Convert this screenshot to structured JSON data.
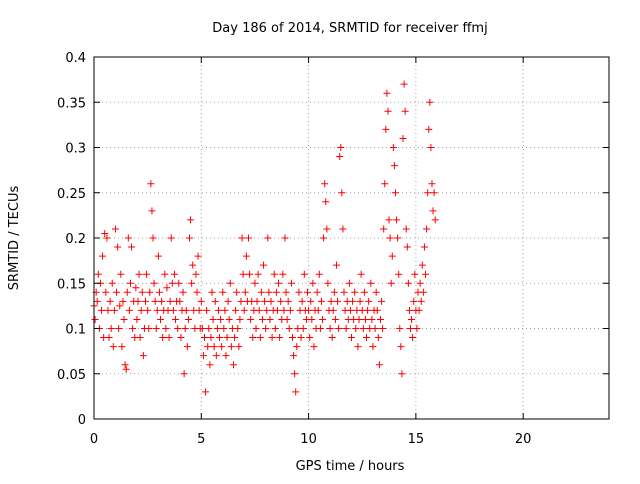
{
  "chart_data": {
    "type": "scatter",
    "title": "Day 186 of 2014, SRMTID for receiver ffmj",
    "xlabel": "GPS time / hours",
    "ylabel": "SRMTID / TECUs",
    "xlim": [
      0,
      24
    ],
    "ylim": [
      0,
      0.4
    ],
    "xticks": [
      0,
      5,
      10,
      15,
      20
    ],
    "xtick_labels": [
      "0",
      "5",
      "10",
      "15",
      "20"
    ],
    "yticks": [
      0,
      0.05,
      0.1,
      0.15,
      0.2,
      0.25,
      0.3,
      0.35,
      0.4
    ],
    "ytick_labels": [
      "0",
      "0.05",
      "0.1",
      "0.15",
      "0.2",
      "0.25",
      "0.3",
      "0.35",
      "0.4"
    ],
    "grid": true,
    "marker": "+",
    "color": "#ff0000",
    "series": [
      {
        "name": "SRMTID",
        "points": [
          [
            0.0,
            0.125
          ],
          [
            0.05,
            0.11
          ],
          [
            0.1,
            0.14
          ],
          [
            0.15,
            0.13
          ],
          [
            0.2,
            0.16
          ],
          [
            0.25,
            0.1
          ],
          [
            0.3,
            0.15
          ],
          [
            0.35,
            0.12
          ],
          [
            0.4,
            0.18
          ],
          [
            0.45,
            0.09
          ],
          [
            0.5,
            0.205
          ],
          [
            0.55,
            0.14
          ],
          [
            0.6,
            0.2
          ],
          [
            0.65,
            0.12
          ],
          [
            0.7,
            0.09
          ],
          [
            0.75,
            0.13
          ],
          [
            0.8,
            0.1
          ],
          [
            0.85,
            0.15
          ],
          [
            0.9,
            0.08
          ],
          [
            0.95,
            0.12
          ],
          [
            1.0,
            0.21
          ],
          [
            1.05,
            0.14
          ],
          [
            1.1,
            0.19
          ],
          [
            1.15,
            0.1
          ],
          [
            1.2,
            0.125
          ],
          [
            1.25,
            0.16
          ],
          [
            1.3,
            0.08
          ],
          [
            1.35,
            0.13
          ],
          [
            1.4,
            0.11
          ],
          [
            1.45,
            0.06
          ],
          [
            1.5,
            0.055
          ],
          [
            1.55,
            0.14
          ],
          [
            1.6,
            0.2
          ],
          [
            1.65,
            0.12
          ],
          [
            1.7,
            0.15
          ],
          [
            1.75,
            0.19
          ],
          [
            1.8,
            0.1
          ],
          [
            1.85,
            0.13
          ],
          [
            1.9,
            0.09
          ],
          [
            1.95,
            0.145
          ],
          [
            2.0,
            0.11
          ],
          [
            2.05,
            0.13
          ],
          [
            2.1,
            0.16
          ],
          [
            2.15,
            0.09
          ],
          [
            2.2,
            0.12
          ],
          [
            2.25,
            0.14
          ],
          [
            2.3,
            0.07
          ],
          [
            2.35,
            0.1
          ],
          [
            2.4,
            0.13
          ],
          [
            2.45,
            0.16
          ],
          [
            2.5,
            0.12
          ],
          [
            2.55,
            0.1
          ],
          [
            2.6,
            0.14
          ],
          [
            2.65,
            0.26
          ],
          [
            2.7,
            0.23
          ],
          [
            2.75,
            0.2
          ],
          [
            2.8,
            0.15
          ],
          [
            2.85,
            0.13
          ],
          [
            2.9,
            0.1
          ],
          [
            2.95,
            0.12
          ],
          [
            3.0,
            0.18
          ],
          [
            3.05,
            0.14
          ],
          [
            3.1,
            0.11
          ],
          [
            3.15,
            0.13
          ],
          [
            3.2,
            0.09
          ],
          [
            3.25,
            0.12
          ],
          [
            3.3,
            0.16
          ],
          [
            3.35,
            0.1
          ],
          [
            3.4,
            0.145
          ],
          [
            3.45,
            0.12
          ],
          [
            3.5,
            0.09
          ],
          [
            3.55,
            0.13
          ],
          [
            3.6,
            0.2
          ],
          [
            3.65,
            0.15
          ],
          [
            3.7,
            0.12
          ],
          [
            3.75,
            0.16
          ],
          [
            3.8,
            0.11
          ],
          [
            3.85,
            0.13
          ],
          [
            3.9,
            0.1
          ],
          [
            3.95,
            0.15
          ],
          [
            4.0,
            0.13
          ],
          [
            4.05,
            0.09
          ],
          [
            4.1,
            0.12
          ],
          [
            4.15,
            0.14
          ],
          [
            4.2,
            0.05
          ],
          [
            4.25,
            0.1
          ],
          [
            4.3,
            0.12
          ],
          [
            4.35,
            0.08
          ],
          [
            4.4,
            0.11
          ],
          [
            4.45,
            0.2
          ],
          [
            4.5,
            0.22
          ],
          [
            4.55,
            0.15
          ],
          [
            4.6,
            0.17
          ],
          [
            4.65,
            0.12
          ],
          [
            4.7,
            0.1
          ],
          [
            4.75,
            0.16
          ],
          [
            4.8,
            0.14
          ],
          [
            4.85,
            0.18
          ],
          [
            4.9,
            0.12
          ],
          [
            4.95,
            0.1
          ],
          [
            5.0,
            0.13
          ],
          [
            5.05,
            0.1
          ],
          [
            5.1,
            0.07
          ],
          [
            5.15,
            0.09
          ],
          [
            5.2,
            0.03
          ],
          [
            5.25,
            0.12
          ],
          [
            5.3,
            0.08
          ],
          [
            5.35,
            0.1
          ],
          [
            5.4,
            0.06
          ],
          [
            5.45,
            0.09
          ],
          [
            5.5,
            0.14
          ],
          [
            5.55,
            0.11
          ],
          [
            5.6,
            0.08
          ],
          [
            5.65,
            0.13
          ],
          [
            5.7,
            0.07
          ],
          [
            5.75,
            0.1
          ],
          [
            5.8,
            0.12
          ],
          [
            5.85,
            0.09
          ],
          [
            5.9,
            0.11
          ],
          [
            5.95,
            0.08
          ],
          [
            6.0,
            0.14
          ],
          [
            6.05,
            0.1
          ],
          [
            6.1,
            0.12
          ],
          [
            6.15,
            0.07
          ],
          [
            6.2,
            0.09
          ],
          [
            6.25,
            0.13
          ],
          [
            6.3,
            0.11
          ],
          [
            6.35,
            0.15
          ],
          [
            6.4,
            0.08
          ],
          [
            6.45,
            0.1
          ],
          [
            6.5,
            0.06
          ],
          [
            6.55,
            0.09
          ],
          [
            6.6,
            0.12
          ],
          [
            6.65,
            0.14
          ],
          [
            6.7,
            0.1
          ],
          [
            6.75,
            0.08
          ],
          [
            6.8,
            0.11
          ],
          [
            6.85,
            0.13
          ],
          [
            6.9,
            0.2
          ],
          [
            6.95,
            0.16
          ],
          [
            7.0,
            0.12
          ],
          [
            7.05,
            0.14
          ],
          [
            7.1,
            0.18
          ],
          [
            7.15,
            0.13
          ],
          [
            7.2,
            0.2
          ],
          [
            7.25,
            0.16
          ],
          [
            7.3,
            0.11
          ],
          [
            7.35,
            0.13
          ],
          [
            7.4,
            0.09
          ],
          [
            7.45,
            0.12
          ],
          [
            7.5,
            0.15
          ],
          [
            7.55,
            0.1
          ],
          [
            7.6,
            0.13
          ],
          [
            7.65,
            0.16
          ],
          [
            7.7,
            0.12
          ],
          [
            7.75,
            0.09
          ],
          [
            7.8,
            0.14
          ],
          [
            7.85,
            0.11
          ],
          [
            7.9,
            0.17
          ],
          [
            7.95,
            0.13
          ],
          [
            8.0,
            0.1
          ],
          [
            8.05,
            0.12
          ],
          [
            8.1,
            0.2
          ],
          [
            8.15,
            0.14
          ],
          [
            8.2,
            0.11
          ],
          [
            8.25,
            0.13
          ],
          [
            8.3,
            0.09
          ],
          [
            8.35,
            0.12
          ],
          [
            8.4,
            0.16
          ],
          [
            8.45,
            0.1
          ],
          [
            8.5,
            0.14
          ],
          [
            8.55,
            0.12
          ],
          [
            8.6,
            0.15
          ],
          [
            8.65,
            0.09
          ],
          [
            8.7,
            0.13
          ],
          [
            8.75,
            0.11
          ],
          [
            8.8,
            0.16
          ],
          [
            8.85,
            0.12
          ],
          [
            8.9,
            0.2
          ],
          [
            8.95,
            0.14
          ],
          [
            9.0,
            0.11
          ],
          [
            9.05,
            0.13
          ],
          [
            9.1,
            0.1
          ],
          [
            9.15,
            0.12
          ],
          [
            9.2,
            0.15
          ],
          [
            9.25,
            0.09
          ],
          [
            9.3,
            0.07
          ],
          [
            9.35,
            0.05
          ],
          [
            9.4,
            0.03
          ],
          [
            9.45,
            0.08
          ],
          [
            9.5,
            0.1
          ],
          [
            9.55,
            0.14
          ],
          [
            9.6,
            0.12
          ],
          [
            9.65,
            0.09
          ],
          [
            9.7,
            0.13
          ],
          [
            9.75,
            0.1
          ],
          [
            9.8,
            0.16
          ],
          [
            9.85,
            0.12
          ],
          [
            9.9,
            0.11
          ],
          [
            9.95,
            0.14
          ],
          [
            10.0,
            0.12
          ],
          [
            10.05,
            0.09
          ],
          [
            10.1,
            0.13
          ],
          [
            10.15,
            0.11
          ],
          [
            10.2,
            0.15
          ],
          [
            10.25,
            0.08
          ],
          [
            10.3,
            0.12
          ],
          [
            10.35,
            0.1
          ],
          [
            10.4,
            0.14
          ],
          [
            10.45,
            0.12
          ],
          [
            10.5,
            0.16
          ],
          [
            10.55,
            0.1
          ],
          [
            10.6,
            0.13
          ],
          [
            10.65,
            0.11
          ],
          [
            10.7,
            0.2
          ],
          [
            10.75,
            0.26
          ],
          [
            10.8,
            0.24
          ],
          [
            10.85,
            0.21
          ],
          [
            10.9,
            0.15
          ],
          [
            10.95,
            0.12
          ],
          [
            11.0,
            0.1
          ],
          [
            11.05,
            0.13
          ],
          [
            11.1,
            0.09
          ],
          [
            11.15,
            0.12
          ],
          [
            11.2,
            0.14
          ],
          [
            11.25,
            0.11
          ],
          [
            11.3,
            0.17
          ],
          [
            11.35,
            0.13
          ],
          [
            11.4,
            0.1
          ],
          [
            11.45,
            0.29
          ],
          [
            11.5,
            0.3
          ],
          [
            11.55,
            0.25
          ],
          [
            11.6,
            0.21
          ],
          [
            11.65,
            0.14
          ],
          [
            11.7,
            0.12
          ],
          [
            11.75,
            0.1
          ],
          [
            11.8,
            0.13
          ],
          [
            11.85,
            0.11
          ],
          [
            11.9,
            0.15
          ],
          [
            11.95,
            0.12
          ],
          [
            12.0,
            0.09
          ],
          [
            12.05,
            0.13
          ],
          [
            12.1,
            0.11
          ],
          [
            12.15,
            0.14
          ],
          [
            12.2,
            0.1
          ],
          [
            12.25,
            0.12
          ],
          [
            12.3,
            0.08
          ],
          [
            12.35,
            0.11
          ],
          [
            12.4,
            0.13
          ],
          [
            12.45,
            0.16
          ],
          [
            12.5,
            0.12
          ],
          [
            12.55,
            0.1
          ],
          [
            12.6,
            0.14
          ],
          [
            12.65,
            0.11
          ],
          [
            12.7,
            0.09
          ],
          [
            12.75,
            0.12
          ],
          [
            12.8,
            0.13
          ],
          [
            12.85,
            0.1
          ],
          [
            12.9,
            0.15
          ],
          [
            12.95,
            0.11
          ],
          [
            13.0,
            0.08
          ],
          [
            13.05,
            0.12
          ],
          [
            13.1,
            0.1
          ],
          [
            13.15,
            0.14
          ],
          [
            13.2,
            0.12
          ],
          [
            13.25,
            0.09
          ],
          [
            13.3,
            0.06
          ],
          [
            13.35,
            0.11
          ],
          [
            13.4,
            0.13
          ],
          [
            13.45,
            0.1
          ],
          [
            13.5,
            0.21
          ],
          [
            13.55,
            0.26
          ],
          [
            13.6,
            0.32
          ],
          [
            13.65,
            0.36
          ],
          [
            13.7,
            0.34
          ],
          [
            13.75,
            0.22
          ],
          [
            13.8,
            0.2
          ],
          [
            13.85,
            0.15
          ],
          [
            13.9,
            0.18
          ],
          [
            13.95,
            0.3
          ],
          [
            14.0,
            0.28
          ],
          [
            14.05,
            0.25
          ],
          [
            14.1,
            0.22
          ],
          [
            14.15,
            0.2
          ],
          [
            14.2,
            0.16
          ],
          [
            14.25,
            0.1
          ],
          [
            14.3,
            0.08
          ],
          [
            14.35,
            0.05
          ],
          [
            14.4,
            0.31
          ],
          [
            14.45,
            0.37
          ],
          [
            14.5,
            0.34
          ],
          [
            14.55,
            0.21
          ],
          [
            14.6,
            0.19
          ],
          [
            14.65,
            0.15
          ],
          [
            14.7,
            0.12
          ],
          [
            14.75,
            0.1
          ],
          [
            14.8,
            0.11
          ],
          [
            14.85,
            0.09
          ],
          [
            14.9,
            0.13
          ],
          [
            14.95,
            0.16
          ],
          [
            15.0,
            0.12
          ],
          [
            15.05,
            0.1
          ],
          [
            15.1,
            0.14
          ],
          [
            15.15,
            0.12
          ],
          [
            15.2,
            0.15
          ],
          [
            15.25,
            0.13
          ],
          [
            15.3,
            0.17
          ],
          [
            15.35,
            0.14
          ],
          [
            15.4,
            0.19
          ],
          [
            15.45,
            0.16
          ],
          [
            15.5,
            0.21
          ],
          [
            15.55,
            0.25
          ],
          [
            15.6,
            0.32
          ],
          [
            15.65,
            0.35
          ],
          [
            15.7,
            0.3
          ],
          [
            15.75,
            0.26
          ],
          [
            15.8,
            0.23
          ],
          [
            15.85,
            0.25
          ],
          [
            15.9,
            0.22
          ]
        ]
      }
    ]
  }
}
